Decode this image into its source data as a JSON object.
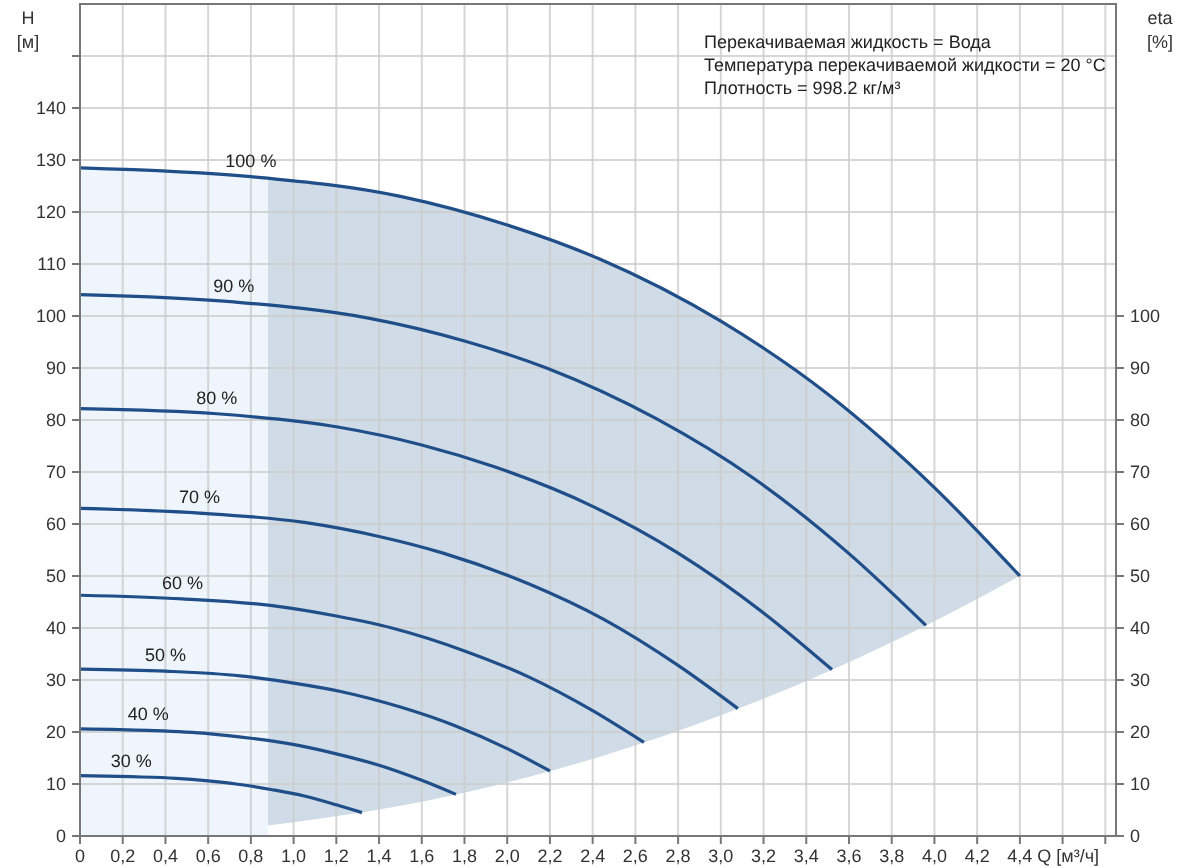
{
  "chart_data": {
    "type": "line",
    "xlabel": "Q [м³/ч]",
    "ylabel": "H [м]",
    "y2label": "eta [%]",
    "annotations": [
      "Перекачиваемая жидкость = Вода",
      "Температура перекачиваемой жидкости = 20 °C",
      "Плотность = 998.2 кг/м³"
    ],
    "xlim": [
      0,
      4.85
    ],
    "ylim": [
      0,
      160
    ],
    "y2lim": [
      0,
      160
    ],
    "xticks": [
      0,
      {
        "value": 0.2,
        "label": "0,2"
      },
      {
        "value": 0.4,
        "label": "0,4"
      },
      {
        "value": 0.6,
        "label": "0,6"
      },
      {
        "value": 0.8,
        "label": "0,8"
      },
      {
        "value": 1,
        "label": "1,0"
      },
      {
        "value": 1.2,
        "label": "1,2"
      },
      {
        "value": 1.4,
        "label": "1,4"
      },
      {
        "value": 1.6,
        "label": "1,6"
      },
      {
        "value": 1.8,
        "label": "1,8"
      },
      {
        "value": 2,
        "label": "2,0"
      },
      {
        "value": 2.2,
        "label": "2,2"
      },
      {
        "value": 2.4,
        "label": "2,4"
      },
      {
        "value": 2.6,
        "label": "2,6"
      },
      {
        "value": 2.8,
        "label": "2,8"
      },
      {
        "value": 3,
        "label": "3,0"
      },
      {
        "value": 3.2,
        "label": "3,2"
      },
      {
        "value": 3.4,
        "label": "3,4"
      },
      {
        "value": 3.6,
        "label": "3,6"
      },
      {
        "value": 3.8,
        "label": "3,8"
      },
      {
        "value": 4,
        "label": "4,0"
      },
      {
        "value": 4.2,
        "label": "4,2"
      },
      {
        "value": 4.4,
        "label": "4,4"
      },
      {
        "value": 4.6,
        "label": null
      },
      {
        "value": 4.8,
        "label": null
      }
    ],
    "yticks": [
      0,
      10,
      20,
      30,
      40,
      50,
      60,
      70,
      80,
      90,
      100,
      110,
      120,
      130,
      140,
      {
        "value": 150,
        "label": null
      }
    ],
    "y2ticks": [
      0,
      10,
      20,
      30,
      40,
      50,
      60,
      70,
      80,
      90,
      100
    ],
    "grid": true,
    "series": [
      {
        "type": "area",
        "color": "#eef5fd",
        "x": [
          0,
          0.44,
          0.88
        ],
        "values": [
          128.5,
          128,
          126.6
        ]
      },
      {
        "type": "area",
        "color": "#cfdbe7",
        "x": [
          0.88,
          1.5,
          2.0,
          2.43,
          3.0,
          3.5,
          4.0,
          4.4
        ],
        "values": [
          126.6,
          123,
          117.5,
          111,
          99,
          85,
          67,
          50
        ]
      },
      {
        "type": "area",
        "color": "#ffffff",
        "x": [
          0.88,
          1.5,
          2.0,
          2.43,
          3.0,
          3.5,
          4.0,
          4.4
        ],
        "values": [
          2.0,
          5.8,
          10.3,
          15.2,
          23.2,
          31.6,
          41.3,
          50
        ]
      },
      {
        "name": "100 %",
        "color": "#1f4e89",
        "x": [
          0,
          0.8,
          1.5,
          2.0,
          2.43,
          3.0,
          3.5,
          4.0,
          4.4
        ],
        "values": [
          128.5,
          126.8,
          123,
          117.5,
          111,
          99,
          85,
          67,
          50
        ]
      },
      {
        "name": "90 %",
        "color": "#1f4e89",
        "x": [
          0,
          0.72,
          1.35,
          1.8,
          2.19,
          2.7,
          3.15,
          3.6,
          3.96
        ],
        "values": [
          104.1,
          102.7,
          99.6,
          95.2,
          89.9,
          80.2,
          68.9,
          54.3,
          40.5
        ]
      },
      {
        "name": "80 %",
        "color": "#1f4e89",
        "x": [
          0,
          0.64,
          1.2,
          1.6,
          1.94,
          2.4,
          2.8,
          3.2,
          3.52
        ],
        "values": [
          82.2,
          81.2,
          78.7,
          75.2,
          71.0,
          63.4,
          54.4,
          42.9,
          32.0
        ]
      },
      {
        "name": "70 %",
        "color": "#1f4e89",
        "x": [
          0,
          0.56,
          1.05,
          1.4,
          1.7,
          2.1,
          2.45,
          2.8,
          3.08
        ],
        "values": [
          63.0,
          62.1,
          60.3,
          57.6,
          54.4,
          48.5,
          41.7,
          32.8,
          24.5
        ]
      },
      {
        "name": "60 %",
        "color": "#1f4e89",
        "x": [
          0,
          0.48,
          0.9,
          1.2,
          1.46,
          1.8,
          2.1,
          2.4,
          2.64
        ],
        "values": [
          46.3,
          45.6,
          44.3,
          42.3,
          40.0,
          35.6,
          30.6,
          24.1,
          18.0
        ]
      },
      {
        "name": "50 %",
        "color": "#1f4e89",
        "x": [
          0,
          0.4,
          0.75,
          1.0,
          1.22,
          1.5,
          1.75,
          2.0,
          2.2
        ],
        "values": [
          32.1,
          31.7,
          30.8,
          29.4,
          27.8,
          24.8,
          21.3,
          16.8,
          12.5
        ]
      },
      {
        "name": "40 %",
        "color": "#1f4e89",
        "x": [
          0,
          0.32,
          0.6,
          0.8,
          0.97,
          1.2,
          1.4,
          1.6,
          1.76
        ],
        "values": [
          20.6,
          20.3,
          19.7,
          18.8,
          17.8,
          15.8,
          13.6,
          10.7,
          8.0
        ]
      },
      {
        "name": "30 %",
        "color": "#1f4e89",
        "x": [
          0,
          0.24,
          0.45,
          0.6,
          0.73,
          0.9,
          1.05,
          1.2,
          1.32
        ],
        "values": [
          11.6,
          11.4,
          11.1,
          10.6,
          10.0,
          8.9,
          7.7,
          6.0,
          4.5
        ]
      }
    ]
  }
}
